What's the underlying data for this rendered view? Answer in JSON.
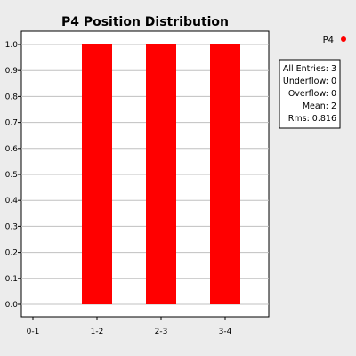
{
  "chart_data": {
    "type": "bar",
    "title": "P4 Position Distribution",
    "categories": [
      "0-1",
      "1-2",
      "2-3",
      "3-4"
    ],
    "series": [
      {
        "name": "P4",
        "values": [
          0,
          1,
          1,
          1
        ],
        "color": "#ff0000"
      }
    ],
    "yticks": [
      "0.0",
      "0.1",
      "0.2",
      "0.3",
      "0.4",
      "0.5",
      "0.6",
      "0.7",
      "0.8",
      "0.9",
      "1.0"
    ],
    "ylim": [
      0,
      1
    ],
    "grid": true,
    "legend": "right",
    "stats": [
      {
        "label": "All Entries:",
        "value": "3"
      },
      {
        "label": "Underflow:",
        "value": "0"
      },
      {
        "label": "Overflow:",
        "value": "0"
      },
      {
        "label": "Mean:",
        "value": "2"
      },
      {
        "label": "Rms:",
        "value": "0.816"
      }
    ]
  }
}
